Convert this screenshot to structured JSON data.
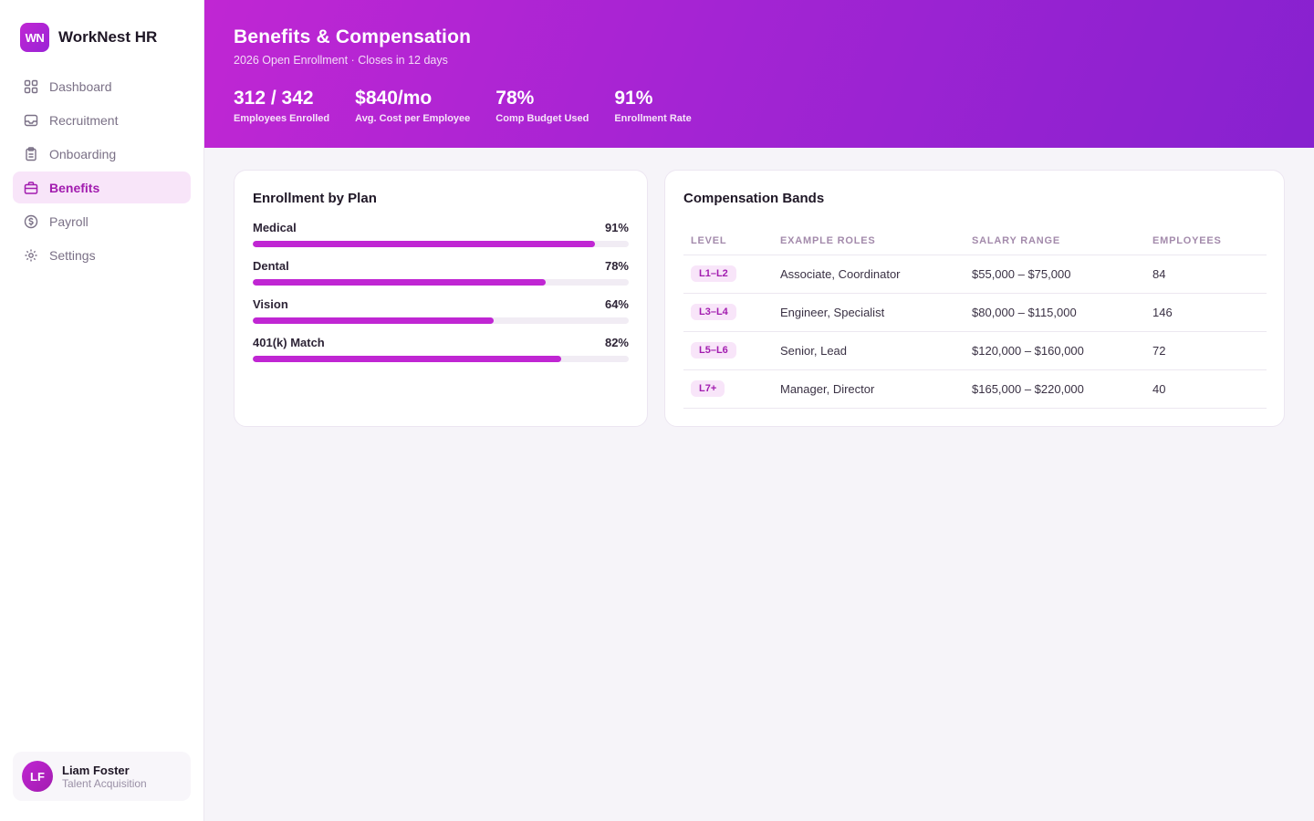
{
  "brand": {
    "logo_text": "WN",
    "name": "WorkNest HR",
    "accent": "#c026d3"
  },
  "sidebar": {
    "items": [
      {
        "label": "Dashboard",
        "icon": "grid-icon"
      },
      {
        "label": "Recruitment",
        "icon": "inbox-icon"
      },
      {
        "label": "Onboarding",
        "icon": "clipboard-icon"
      },
      {
        "label": "Benefits",
        "icon": "briefcase-icon",
        "active": true
      },
      {
        "label": "Payroll",
        "icon": "dollar-circle-icon"
      },
      {
        "label": "Settings",
        "icon": "gear-icon"
      }
    ]
  },
  "user": {
    "initials": "LF",
    "name": "Liam Foster",
    "role": "Talent Acquisition"
  },
  "header": {
    "title": "Benefits & Compensation",
    "subtitle": "2026 Open Enrollment · Closes in 12 days",
    "stats": [
      {
        "value": "312 / 342",
        "label": "Employees Enrolled"
      },
      {
        "value": "$840/mo",
        "label": "Avg. Cost per Employee"
      },
      {
        "value": "78%",
        "label": "Comp Budget Used"
      },
      {
        "value": "91%",
        "label": "Enrollment Rate"
      }
    ]
  },
  "enrollment": {
    "title": "Enrollment by Plan",
    "plans": [
      {
        "name": "Medical",
        "pct_label": "91%",
        "value": 91
      },
      {
        "name": "Dental",
        "pct_label": "78%",
        "value": 78
      },
      {
        "name": "Vision",
        "pct_label": "64%",
        "value": 64
      },
      {
        "name": "401(k) Match",
        "pct_label": "82%",
        "value": 82
      }
    ]
  },
  "compensation": {
    "title": "Compensation Bands",
    "headers": [
      "LEVEL",
      "EXAMPLE ROLES",
      "SALARY RANGE",
      "EMPLOYEES"
    ],
    "rows": [
      {
        "level": "L1–L2",
        "roles": "Associate, Coordinator",
        "range": "$55,000 – $75,000",
        "employees": "84"
      },
      {
        "level": "L3–L4",
        "roles": "Engineer, Specialist",
        "range": "$80,000 – $115,000",
        "employees": "146"
      },
      {
        "level": "L5–L6",
        "roles": "Senior, Lead",
        "range": "$120,000 – $160,000",
        "employees": "72"
      },
      {
        "level": "L7+",
        "roles": "Manager, Director",
        "range": "$165,000 – $220,000",
        "employees": "40"
      }
    ]
  }
}
